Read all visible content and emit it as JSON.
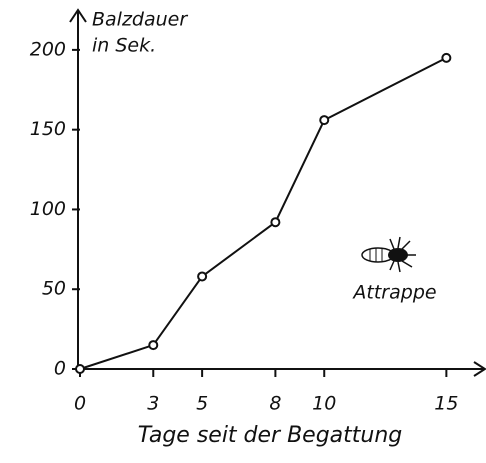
{
  "chart_data": {
    "type": "line",
    "ylabel": [
      "Balzdauer",
      "in Sek."
    ],
    "xlabel": "Tage seit der Begattung",
    "annotation": "Attrappe",
    "x": [
      0,
      3,
      5,
      8,
      10,
      15
    ],
    "series": [
      {
        "color": "#111111",
        "values": [
          0,
          15,
          58,
          92,
          156,
          195
        ]
      }
    ],
    "xlim": [
      0,
      16.5
    ],
    "ylim": [
      0,
      225
    ],
    "xticks": [
      0,
      3,
      5,
      8,
      10,
      15
    ],
    "yticks": [
      0,
      50,
      100,
      150,
      200
    ],
    "grid": false
  }
}
